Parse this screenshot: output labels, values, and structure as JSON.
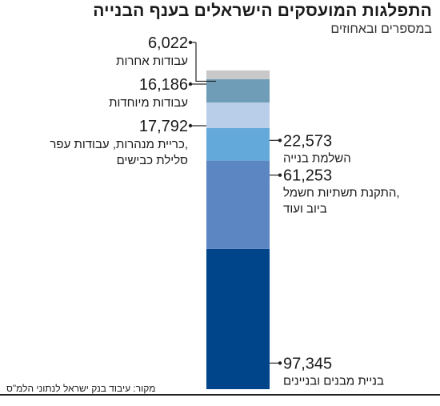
{
  "title": "התפלגות המועסקים הישראלים בענף הבנייה",
  "subtitle": "במספרים ובאחוזים",
  "source": "מקור: עיבוד בנק ישראל לנתוני הלמ\"ס",
  "chart_data": {
    "type": "bar",
    "stacked": true,
    "series": [
      {
        "values": [
          97345
        ],
        "label": "בניית מבנים ובניינים",
        "label_lines": [
          "בניית מבנים ובניינים"
        ],
        "color": "#00448a",
        "side": "right"
      },
      {
        "values": [
          61253
        ],
        "label": "התקנת תשתיות חשמל, ביוב ועוד",
        "label_lines": [
          "התקנת תשתיות חשמל,",
          "ביוב ועוד"
        ],
        "color": "#5b86c2",
        "side": "right"
      },
      {
        "values": [
          22573
        ],
        "label": "השלמת בנייה",
        "label_lines": [
          "השלמת בנייה"
        ],
        "color": "#63aadb",
        "side": "right"
      },
      {
        "values": [
          17792
        ],
        "label": "כריית מנהרות, עבודות עפר, סלילת כבישים",
        "label_lines": [
          "כריית מנהרות, עבודות עפר,",
          "סלילת כבישים"
        ],
        "color": "#b9cfe9",
        "side": "left"
      },
      {
        "values": [
          16186
        ],
        "label": "עבודות מיוחדות",
        "label_lines": [
          "עבודות מיוחדות"
        ],
        "color": "#6f9cb7",
        "side": "left"
      },
      {
        "values": [
          6022
        ],
        "label": "עבודות אחרות",
        "label_lines": [
          "עבודות אחרות"
        ],
        "color": "#c8c8c8",
        "side": "left"
      }
    ]
  }
}
